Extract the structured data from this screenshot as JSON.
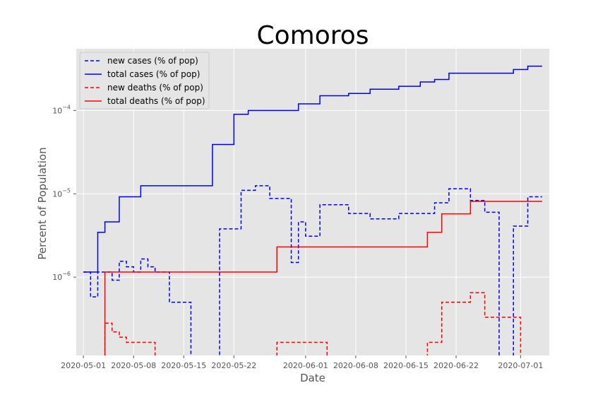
{
  "chart_data": {
    "type": "line",
    "title": "Comoros",
    "xlabel": "Date",
    "ylabel": "Percent of Population",
    "yscale": "log",
    "ylim": [
      1.15e-07,
      0.00055
    ],
    "xlim": [
      "2020-04-30",
      "2020-07-05"
    ],
    "grid": true,
    "legend_position": "top-left",
    "x_ticks": [
      "2020-05-01",
      "2020-05-08",
      "2020-05-15",
      "2020-05-22",
      "2020-06-01",
      "2020-06-08",
      "2020-06-15",
      "2020-06-22",
      "2020-07-01"
    ],
    "y_ticks": [
      {
        "value": 1e-06,
        "base": "10",
        "exp": "−6"
      },
      {
        "value": 1e-05,
        "base": "10",
        "exp": "−5"
      },
      {
        "value": 0.0001,
        "base": "10",
        "exp": "−4"
      }
    ],
    "series": [
      {
        "name": "new cases (% of pop)",
        "color": "#0000ff",
        "style": "dashed",
        "points": [
          [
            "2020-05-01",
            1.15e-06
          ],
          [
            "2020-05-02",
            5.8e-07
          ],
          [
            "2020-05-03",
            1.15e-06
          ],
          [
            "2020-05-04",
            1.15e-06
          ],
          [
            "2020-05-05",
            9.2e-07
          ],
          [
            "2020-05-06",
            1.55e-06
          ],
          [
            "2020-05-07",
            1.33e-06
          ],
          [
            "2020-05-08",
            1.15e-06
          ],
          [
            "2020-05-09",
            1.65e-06
          ],
          [
            "2020-05-10",
            1.33e-06
          ],
          [
            "2020-05-11",
            1.15e-06
          ],
          [
            "2020-05-12",
            1.15e-06
          ],
          [
            "2020-05-13",
            5e-07
          ],
          [
            "2020-05-14",
            5e-07
          ],
          [
            "2020-05-15",
            5e-07
          ],
          [
            "2020-05-16",
            null
          ],
          [
            "2020-05-17",
            null
          ],
          [
            "2020-05-18",
            null
          ],
          [
            "2020-05-19",
            null
          ],
          [
            "2020-05-20",
            3.8e-06
          ],
          [
            "2020-05-21",
            3.8e-06
          ],
          [
            "2020-05-22",
            3.8e-06
          ],
          [
            "2020-05-23",
            1.1e-05
          ],
          [
            "2020-05-24",
            1.1e-05
          ],
          [
            "2020-05-25",
            1.25e-05
          ],
          [
            "2020-05-26",
            1.25e-05
          ],
          [
            "2020-05-27",
            8.8e-06
          ],
          [
            "2020-05-28",
            8.8e-06
          ],
          [
            "2020-05-29",
            8.8e-06
          ],
          [
            "2020-05-30",
            1.5e-06
          ],
          [
            "2020-05-31",
            4.6e-06
          ],
          [
            "2020-06-01",
            3.1e-06
          ],
          [
            "2020-06-02",
            3.1e-06
          ],
          [
            "2020-06-03",
            7.4e-06
          ],
          [
            "2020-06-04",
            7.4e-06
          ],
          [
            "2020-06-05",
            7.4e-06
          ],
          [
            "2020-06-06",
            7.4e-06
          ],
          [
            "2020-06-07",
            5.8e-06
          ],
          [
            "2020-06-08",
            5.8e-06
          ],
          [
            "2020-06-09",
            5.8e-06
          ],
          [
            "2020-06-10",
            5e-06
          ],
          [
            "2020-06-11",
            5e-06
          ],
          [
            "2020-06-12",
            5e-06
          ],
          [
            "2020-06-13",
            5e-06
          ],
          [
            "2020-06-14",
            5.8e-06
          ],
          [
            "2020-06-15",
            5.8e-06
          ],
          [
            "2020-06-16",
            5.8e-06
          ],
          [
            "2020-06-17",
            5.8e-06
          ],
          [
            "2020-06-18",
            5.8e-06
          ],
          [
            "2020-06-19",
            7.8e-06
          ],
          [
            "2020-06-20",
            7.8e-06
          ],
          [
            "2020-06-21",
            1.15e-05
          ],
          [
            "2020-06-22",
            1.15e-05
          ],
          [
            "2020-06-23",
            1.15e-05
          ],
          [
            "2020-06-24",
            8.3e-06
          ],
          [
            "2020-06-25",
            8.3e-06
          ],
          [
            "2020-06-26",
            6e-06
          ],
          [
            "2020-06-27",
            6e-06
          ],
          [
            "2020-06-28",
            null
          ],
          [
            "2020-06-29",
            null
          ],
          [
            "2020-06-30",
            4.1e-06
          ],
          [
            "2020-07-01",
            4.1e-06
          ],
          [
            "2020-07-02",
            9.2e-06
          ],
          [
            "2020-07-03",
            9.2e-06
          ],
          [
            "2020-07-04",
            9.2e-06
          ]
        ]
      },
      {
        "name": "total cases (% of pop)",
        "color": "#0000ff",
        "style": "solid",
        "points": [
          [
            "2020-05-01",
            1.15e-06
          ],
          [
            "2020-05-02",
            1.15e-06
          ],
          [
            "2020-05-03",
            3.45e-06
          ],
          [
            "2020-05-04",
            4.6e-06
          ],
          [
            "2020-05-05",
            4.6e-06
          ],
          [
            "2020-05-06",
            9.2e-06
          ],
          [
            "2020-05-07",
            9.2e-06
          ],
          [
            "2020-05-08",
            9.2e-06
          ],
          [
            "2020-05-09",
            1.25e-05
          ],
          [
            "2020-05-10",
            1.25e-05
          ],
          [
            "2020-05-11",
            1.25e-05
          ],
          [
            "2020-05-12",
            1.25e-05
          ],
          [
            "2020-05-13",
            1.25e-05
          ],
          [
            "2020-05-14",
            1.25e-05
          ],
          [
            "2020-05-15",
            1.25e-05
          ],
          [
            "2020-05-16",
            1.25e-05
          ],
          [
            "2020-05-17",
            1.25e-05
          ],
          [
            "2020-05-18",
            1.25e-05
          ],
          [
            "2020-05-19",
            3.9e-05
          ],
          [
            "2020-05-20",
            3.9e-05
          ],
          [
            "2020-05-21",
            3.9e-05
          ],
          [
            "2020-05-22",
            9e-05
          ],
          [
            "2020-05-23",
            9e-05
          ],
          [
            "2020-05-24",
            0.0001
          ],
          [
            "2020-05-25",
            0.0001
          ],
          [
            "2020-05-26",
            0.0001
          ],
          [
            "2020-05-27",
            0.0001
          ],
          [
            "2020-05-28",
            0.0001
          ],
          [
            "2020-05-29",
            0.0001
          ],
          [
            "2020-05-30",
            0.0001
          ],
          [
            "2020-05-31",
            0.00012
          ],
          [
            "2020-06-01",
            0.00012
          ],
          [
            "2020-06-02",
            0.00012
          ],
          [
            "2020-06-03",
            0.00015
          ],
          [
            "2020-06-04",
            0.00015
          ],
          [
            "2020-06-05",
            0.00015
          ],
          [
            "2020-06-06",
            0.00015
          ],
          [
            "2020-06-07",
            0.00016
          ],
          [
            "2020-06-08",
            0.00016
          ],
          [
            "2020-06-09",
            0.00016
          ],
          [
            "2020-06-10",
            0.00018
          ],
          [
            "2020-06-11",
            0.00018
          ],
          [
            "2020-06-12",
            0.00018
          ],
          [
            "2020-06-13",
            0.00018
          ],
          [
            "2020-06-14",
            0.000195
          ],
          [
            "2020-06-15",
            0.000195
          ],
          [
            "2020-06-16",
            0.000195
          ],
          [
            "2020-06-17",
            0.00022
          ],
          [
            "2020-06-18",
            0.00022
          ],
          [
            "2020-06-19",
            0.000235
          ],
          [
            "2020-06-20",
            0.000235
          ],
          [
            "2020-06-21",
            0.00028
          ],
          [
            "2020-06-22",
            0.00028
          ],
          [
            "2020-06-23",
            0.00028
          ],
          [
            "2020-06-24",
            0.00028
          ],
          [
            "2020-06-25",
            0.00028
          ],
          [
            "2020-06-26",
            0.00028
          ],
          [
            "2020-06-27",
            0.00028
          ],
          [
            "2020-06-28",
            0.00028
          ],
          [
            "2020-06-29",
            0.00028
          ],
          [
            "2020-06-30",
            0.00031
          ],
          [
            "2020-07-01",
            0.00031
          ],
          [
            "2020-07-02",
            0.00034
          ],
          [
            "2020-07-03",
            0.00034
          ],
          [
            "2020-07-04",
            0.00034
          ]
        ]
      },
      {
        "name": "new deaths (% of pop)",
        "color": "#ff0000",
        "style": "dashed",
        "points": [
          [
            "2020-05-03",
            null
          ],
          [
            "2020-05-04",
            2.8e-07
          ],
          [
            "2020-05-05",
            2.2e-07
          ],
          [
            "2020-05-06",
            1.9e-07
          ],
          [
            "2020-05-07",
            1.65e-07
          ],
          [
            "2020-05-08",
            1.65e-07
          ],
          [
            "2020-05-09",
            1.65e-07
          ],
          [
            "2020-05-10",
            1.65e-07
          ],
          [
            "2020-05-11",
            null
          ],
          [
            "2020-05-27",
            null
          ],
          [
            "2020-05-28",
            1.65e-07
          ],
          [
            "2020-05-29",
            1.65e-07
          ],
          [
            "2020-05-30",
            1.65e-07
          ],
          [
            "2020-05-31",
            1.65e-07
          ],
          [
            "2020-06-01",
            1.65e-07
          ],
          [
            "2020-06-02",
            1.65e-07
          ],
          [
            "2020-06-03",
            1.65e-07
          ],
          [
            "2020-06-04",
            null
          ],
          [
            "2020-06-17",
            null
          ],
          [
            "2020-06-18",
            1.65e-07
          ],
          [
            "2020-06-19",
            1.65e-07
          ],
          [
            "2020-06-20",
            5e-07
          ],
          [
            "2020-06-21",
            5e-07
          ],
          [
            "2020-06-22",
            5e-07
          ],
          [
            "2020-06-23",
            5e-07
          ],
          [
            "2020-06-24",
            6.5e-07
          ],
          [
            "2020-06-25",
            6.5e-07
          ],
          [
            "2020-06-26",
            3.3e-07
          ],
          [
            "2020-06-27",
            3.3e-07
          ],
          [
            "2020-06-28",
            3.3e-07
          ],
          [
            "2020-06-29",
            3.3e-07
          ],
          [
            "2020-06-30",
            3.3e-07
          ],
          [
            "2020-07-01",
            null
          ]
        ]
      },
      {
        "name": "total deaths (% of pop)",
        "color": "#ff0000",
        "style": "solid",
        "points": [
          [
            "2020-05-03",
            null
          ],
          [
            "2020-05-04",
            1.15e-06
          ],
          [
            "2020-05-10",
            1.15e-06
          ],
          [
            "2020-05-20",
            1.15e-06
          ],
          [
            "2020-05-27",
            1.15e-06
          ],
          [
            "2020-05-28",
            2.3e-06
          ],
          [
            "2020-06-01",
            2.3e-06
          ],
          [
            "2020-06-10",
            2.3e-06
          ],
          [
            "2020-06-17",
            2.3e-06
          ],
          [
            "2020-06-18",
            3.45e-06
          ],
          [
            "2020-06-19",
            3.45e-06
          ],
          [
            "2020-06-20",
            5.75e-06
          ],
          [
            "2020-06-21",
            5.75e-06
          ],
          [
            "2020-06-22",
            5.75e-06
          ],
          [
            "2020-06-23",
            5.75e-06
          ],
          [
            "2020-06-24",
            8.1e-06
          ],
          [
            "2020-06-25",
            8.1e-06
          ],
          [
            "2020-06-30",
            8.1e-06
          ],
          [
            "2020-07-04",
            8.1e-06
          ]
        ]
      }
    ]
  }
}
